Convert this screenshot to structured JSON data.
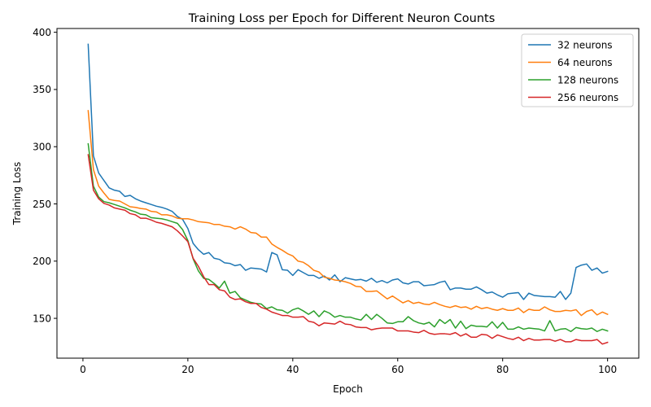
{
  "chart_data": {
    "type": "line",
    "title": "Training Loss per Epoch for Different Neuron Counts",
    "xlabel": "Epoch",
    "ylabel": "Training Loss",
    "xlim": [
      -4.95,
      105.95
    ],
    "ylim": [
      115.2,
      403.3
    ],
    "xticks": [
      0,
      20,
      40,
      60,
      80,
      100
    ],
    "yticks": [
      150,
      200,
      250,
      300,
      350,
      400
    ],
    "grid": false,
    "legend_position": "top-right",
    "x": [
      1,
      2,
      3,
      4,
      5,
      6,
      7,
      8,
      9,
      10,
      11,
      12,
      13,
      14,
      15,
      16,
      17,
      18,
      19,
      20,
      21,
      22,
      23,
      24,
      25,
      26,
      27,
      28,
      29,
      30,
      31,
      32,
      33,
      34,
      35,
      36,
      37,
      38,
      39,
      40,
      41,
      42,
      43,
      44,
      45,
      46,
      47,
      48,
      49,
      50,
      51,
      52,
      53,
      54,
      55,
      56,
      57,
      58,
      59,
      60,
      61,
      62,
      63,
      64,
      65,
      66,
      67,
      68,
      69,
      70,
      71,
      72,
      73,
      74,
      75,
      76,
      77,
      78,
      79,
      80,
      81,
      82,
      83,
      84,
      85,
      86,
      87,
      88,
      89,
      90,
      91,
      92,
      93,
      94,
      95,
      96,
      97,
      98,
      99,
      100
    ],
    "series": [
      {
        "name": "32 neurons",
        "color": "#1f77b4",
        "values": [
          389.5,
          292.0,
          277.0,
          270.5,
          264.0,
          262.0,
          261.0,
          256.5,
          257.5,
          254.5,
          252.5,
          251.0,
          249.5,
          248.0,
          247.0,
          245.5,
          243.5,
          239.0,
          236.5,
          228.5,
          215.5,
          210.0,
          206.0,
          207.5,
          202.5,
          201.5,
          198.5,
          198.0,
          196.0,
          197.0,
          192.0,
          194.0,
          193.5,
          193.0,
          190.5,
          207.5,
          205.5,
          192.5,
          192.0,
          187.5,
          192.5,
          190.0,
          187.5,
          187.5,
          185.0,
          187.0,
          183.5,
          188.0,
          182.0,
          185.5,
          184.5,
          183.5,
          184.0,
          182.5,
          185.0,
          181.5,
          183.0,
          181.0,
          183.5,
          184.5,
          181.0,
          180.0,
          182.0,
          182.0,
          178.5,
          179.0,
          179.5,
          181.5,
          182.5,
          175.0,
          176.5,
          176.5,
          175.5,
          175.5,
          177.5,
          175.0,
          172.0,
          173.0,
          170.5,
          168.5,
          171.5,
          172.0,
          172.5,
          166.5,
          172.0,
          170.0,
          169.5,
          169.0,
          169.0,
          168.5,
          173.5,
          166.5,
          172.0,
          194.5,
          196.5,
          197.5,
          192.0,
          194.0,
          189.5,
          191.0
        ]
      },
      {
        "name": "64 neurons",
        "color": "#ff7f0e",
        "values": [
          331.5,
          280.0,
          265.5,
          259.5,
          254.0,
          253.0,
          252.5,
          250.0,
          247.5,
          247.0,
          246.0,
          245.5,
          243.5,
          243.0,
          240.5,
          240.5,
          239.5,
          237.5,
          237.0,
          237.0,
          236.0,
          234.5,
          234.0,
          233.5,
          232.0,
          232.0,
          230.5,
          230.0,
          228.0,
          230.0,
          228.0,
          225.0,
          224.5,
          221.0,
          221.0,
          215.0,
          212.0,
          209.5,
          206.5,
          204.5,
          200.0,
          199.0,
          196.0,
          192.0,
          190.5,
          186.0,
          185.0,
          183.5,
          183.0,
          182.0,
          180.5,
          178.0,
          177.5,
          173.5,
          173.5,
          174.0,
          170.5,
          167.0,
          169.5,
          166.5,
          163.5,
          165.5,
          163.0,
          164.0,
          162.5,
          162.0,
          164.0,
          162.0,
          160.5,
          159.5,
          161.0,
          159.5,
          160.0,
          158.0,
          160.5,
          158.5,
          159.5,
          158.0,
          157.0,
          158.5,
          157.0,
          157.0,
          159.0,
          155.0,
          158.0,
          157.0,
          157.0,
          160.0,
          157.5,
          156.0,
          156.0,
          157.0,
          156.5,
          157.5,
          152.5,
          156.0,
          157.5,
          153.0,
          155.5,
          153.5
        ]
      },
      {
        "name": "128 neurons",
        "color": "#2ca02c",
        "values": [
          302.5,
          265.5,
          256.0,
          252.0,
          251.0,
          249.5,
          248.0,
          246.5,
          244.5,
          243.0,
          241.0,
          240.5,
          238.0,
          237.5,
          237.0,
          236.0,
          234.5,
          233.0,
          227.5,
          218.0,
          202.0,
          191.5,
          185.0,
          184.0,
          180.5,
          176.5,
          182.5,
          172.0,
          173.5,
          168.0,
          166.0,
          164.0,
          163.0,
          162.5,
          158.5,
          160.0,
          157.5,
          157.0,
          154.5,
          157.5,
          159.0,
          156.5,
          153.5,
          156.5,
          151.5,
          156.5,
          154.5,
          151.0,
          152.5,
          151.0,
          151.0,
          149.5,
          148.5,
          153.5,
          149.0,
          153.5,
          150.0,
          146.0,
          145.5,
          147.0,
          147.0,
          151.5,
          148.0,
          146.0,
          145.0,
          146.5,
          142.5,
          149.0,
          145.5,
          149.0,
          141.5,
          147.5,
          141.0,
          144.0,
          143.0,
          143.0,
          142.5,
          147.0,
          141.5,
          146.5,
          140.5,
          140.5,
          142.5,
          140.5,
          141.5,
          141.0,
          140.5,
          139.0,
          148.0,
          139.0,
          140.5,
          141.0,
          138.5,
          142.0,
          141.0,
          140.5,
          141.5,
          138.5,
          140.5,
          139.0
        ]
      },
      {
        "name": "256 neurons",
        "color": "#d62728",
        "values": [
          293.0,
          262.0,
          254.5,
          250.5,
          249.0,
          246.5,
          245.5,
          244.5,
          241.5,
          240.5,
          237.5,
          237.5,
          236.0,
          234.0,
          233.0,
          231.5,
          230.0,
          226.5,
          222.0,
          217.0,
          202.5,
          195.5,
          186.5,
          179.5,
          179.5,
          175.0,
          174.0,
          168.5,
          166.5,
          167.0,
          164.5,
          163.0,
          163.0,
          159.5,
          158.0,
          155.5,
          154.0,
          152.5,
          152.5,
          151.0,
          151.0,
          151.5,
          147.5,
          146.5,
          143.5,
          146.0,
          145.5,
          145.0,
          147.5,
          145.0,
          144.5,
          142.5,
          142.0,
          142.0,
          140.0,
          141.0,
          141.5,
          141.5,
          141.5,
          139.0,
          139.0,
          139.0,
          138.0,
          137.5,
          139.5,
          137.0,
          136.0,
          136.5,
          136.5,
          136.0,
          137.5,
          134.5,
          136.5,
          133.5,
          133.5,
          136.0,
          135.5,
          132.5,
          135.5,
          134.0,
          132.5,
          131.5,
          133.5,
          130.5,
          132.5,
          131.0,
          131.0,
          131.5,
          131.5,
          130.0,
          131.5,
          129.5,
          129.5,
          131.5,
          130.5,
          130.5,
          130.5,
          131.5,
          127.5,
          129.0
        ]
      }
    ]
  }
}
